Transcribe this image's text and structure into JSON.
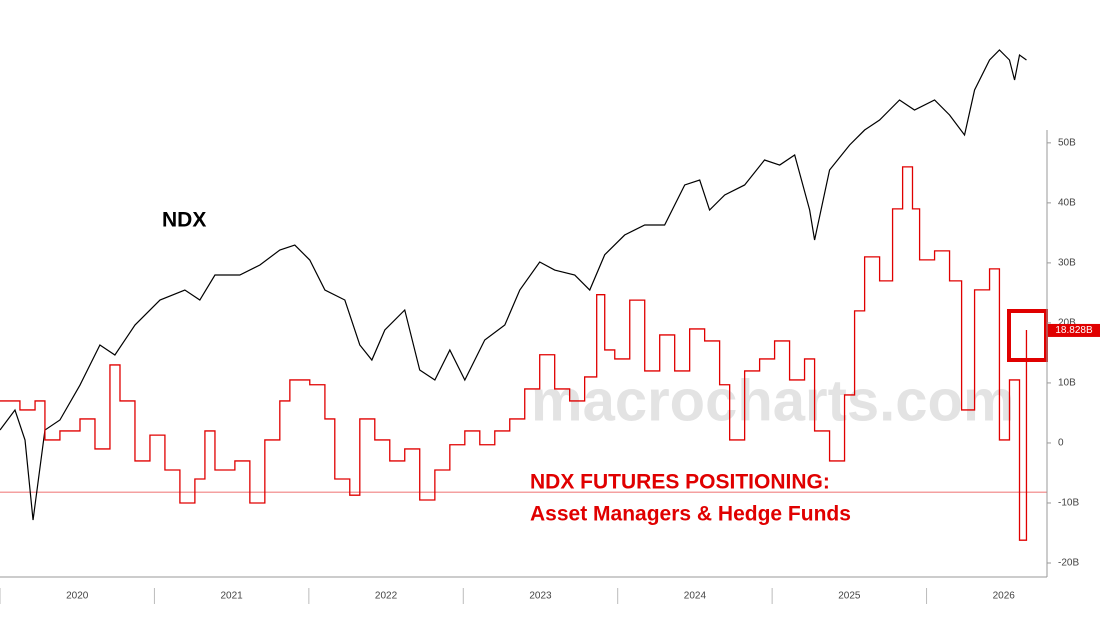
{
  "chart_data": {
    "type": "line",
    "title": "NDX",
    "annotation_title": "NDX FUTURES POSITIONING:",
    "annotation_subtitle": "Asset Managers & Hedge Funds",
    "watermark": "macrocharts.com",
    "xlim": [
      2020,
      2026.78
    ],
    "xticks": [
      {
        "value": 2020.5,
        "label": "2020"
      },
      {
        "value": 2021.5,
        "label": "2021"
      },
      {
        "value": 2022.5,
        "label": "2022"
      },
      {
        "value": 2023.5,
        "label": "2023"
      },
      {
        "value": 2024.5,
        "label": "2024"
      },
      {
        "value": 2025.5,
        "label": "2025"
      },
      {
        "value": 2026.5,
        "label": "2026"
      }
    ],
    "ylim": [
      -22,
      73.8
    ],
    "yticks": [
      {
        "value": -20,
        "label": "-20B"
      },
      {
        "value": -10,
        "label": "-10B"
      },
      0,
      {
        "value": 10,
        "label": "10B"
      },
      {
        "value": 20,
        "label": "20B"
      },
      {
        "value": 30,
        "label": "30B"
      },
      {
        "value": 40,
        "label": "40B"
      },
      {
        "value": 50,
        "label": "50B"
      }
    ],
    "y2lim": [
      2800,
      26500
    ],
    "reference_line": {
      "value": -8.2,
      "color": "#f08080"
    },
    "series": [
      {
        "name": "NDX",
        "color": "#000000",
        "axis": "y2",
        "step": false,
        "x": [
          2020.0,
          2020.097,
          2020.162,
          2020.214,
          2020.291,
          2020.388,
          2020.518,
          2020.647,
          2020.744,
          2020.874,
          2021.036,
          2021.197,
          2021.294,
          2021.392,
          2021.553,
          2021.683,
          2021.812,
          2021.909,
          2022.006,
          2022.104,
          2022.233,
          2022.33,
          2022.408,
          2022.492,
          2022.621,
          2022.718,
          2022.816,
          2022.913,
          2023.01,
          2023.139,
          2023.269,
          2023.366,
          2023.495,
          2023.592,
          2023.722,
          2023.819,
          2023.916,
          2024.045,
          2024.175,
          2024.304,
          2024.434,
          2024.531,
          2024.595,
          2024.693,
          2024.822,
          2024.951,
          2025.049,
          2025.146,
          2025.243,
          2025.275,
          2025.372,
          2025.502,
          2025.599,
          2025.696,
          2025.825,
          2025.922,
          2026.052,
          2026.149,
          2026.246,
          2026.311,
          2026.408,
          2026.472,
          2026.537,
          2026.57,
          2026.602,
          2026.647
        ],
        "values": [
          8775,
          9600,
          8363,
          5066,
          8775,
          9188,
          10630,
          12280,
          11867,
          13103,
          14134,
          14546,
          14134,
          15164,
          15164,
          15576,
          16195,
          16400,
          15782,
          14546,
          14134,
          12280,
          11660,
          12898,
          13723,
          11248,
          10836,
          12073,
          10836,
          12485,
          13103,
          14546,
          15700,
          15370,
          15164,
          14546,
          16000,
          16813,
          17226,
          17226,
          18876,
          19080,
          17844,
          18463,
          18876,
          19905,
          19698,
          20111,
          17844,
          16607,
          19492,
          20523,
          21141,
          21554,
          22378,
          21966,
          22378,
          21760,
          20935,
          22790,
          24027,
          24440,
          24027,
          23203,
          24233,
          24027
        ]
      },
      {
        "name": "NDX FUTURES POSITIONING",
        "color": "#e00000",
        "step": true,
        "x": [
          2020.0,
          2020.129,
          2020.227,
          2020.291,
          2020.388,
          2020.518,
          2020.615,
          2020.712,
          2020.777,
          2020.874,
          2020.971,
          2021.068,
          2021.165,
          2021.262,
          2021.327,
          2021.392,
          2021.521,
          2021.618,
          2021.715,
          2021.812,
          2021.877,
          2022.006,
          2022.104,
          2022.168,
          2022.265,
          2022.33,
          2022.427,
          2022.524,
          2022.621,
          2022.718,
          2022.816,
          2022.913,
          2023.01,
          2023.107,
          2023.204,
          2023.301,
          2023.398,
          2023.495,
          2023.592,
          2023.689,
          2023.786,
          2023.864,
          2023.916,
          2023.981,
          2024.078,
          2024.175,
          2024.272,
          2024.369,
          2024.466,
          2024.563,
          2024.66,
          2024.725,
          2024.822,
          2024.919,
          2025.016,
          2025.113,
          2025.21,
          2025.275,
          2025.372,
          2025.469,
          2025.534,
          2025.599,
          2025.696,
          2025.78,
          2025.845,
          2025.909,
          2025.955,
          2026.052,
          2026.149,
          2026.227,
          2026.311,
          2026.408,
          2026.472,
          2026.537,
          2026.602,
          2026.647
        ],
        "values": [
          7,
          5.5,
          7,
          0.5,
          2,
          4,
          -1,
          13,
          7,
          -3,
          1.3,
          -4.5,
          -10,
          -6,
          2,
          -4.5,
          -3,
          -10,
          0.5,
          7,
          10.5,
          9.7,
          4,
          -6,
          -8.7,
          4,
          0.5,
          -3,
          -1,
          -9.5,
          -4.5,
          -0.3,
          2,
          -0.3,
          2,
          4,
          9,
          14.7,
          9,
          7,
          11,
          24.7,
          15.5,
          14,
          23.8,
          12,
          18,
          12,
          19,
          17,
          9.7,
          0.5,
          12,
          14,
          17,
          10.5,
          14,
          2,
          -3,
          8,
          22,
          31,
          27,
          39,
          46,
          39,
          30.5,
          32,
          27,
          5.5,
          25.5,
          29,
          0.5,
          10.5,
          -16.2,
          18.828
        ],
        "last_value_label": "18.828B"
      }
    ]
  }
}
